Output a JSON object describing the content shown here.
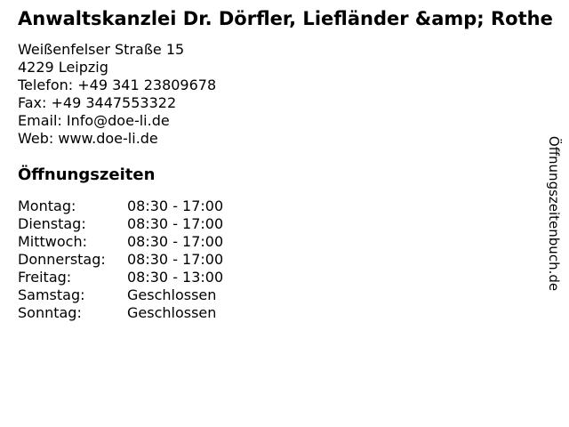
{
  "header": {
    "title": "Anwaltskanzlei Dr. Dörfler, Liefländer &amp; Rothe"
  },
  "contact": {
    "street": "Weißenfelser Straße 15",
    "city": "4229 Leipzig",
    "phone": "Telefon: +49 341 23809678",
    "fax": "Fax: +49 3447553322",
    "email": "Email: Info@doe-li.de",
    "web": "Web: www.doe-li.de"
  },
  "opening_hours": {
    "heading": "Öffnungszeiten",
    "rows": [
      {
        "day": "Montag:",
        "hours": "08:30 - 17:00"
      },
      {
        "day": "Dienstag:",
        "hours": "08:30 - 17:00"
      },
      {
        "day": "Mittwoch:",
        "hours": "08:30 - 17:00"
      },
      {
        "day": "Donnerstag:",
        "hours": "08:30 - 17:00"
      },
      {
        "day": "Freitag:",
        "hours": "08:30 - 13:00"
      },
      {
        "day": "Samstag:",
        "hours": "Geschlossen"
      },
      {
        "day": "Sonntag:",
        "hours": "Geschlossen"
      }
    ]
  },
  "watermark": {
    "text": "Öffnungszeitenbuch.de"
  },
  "colors": {
    "background": "#ffffff",
    "text": "#000000"
  }
}
